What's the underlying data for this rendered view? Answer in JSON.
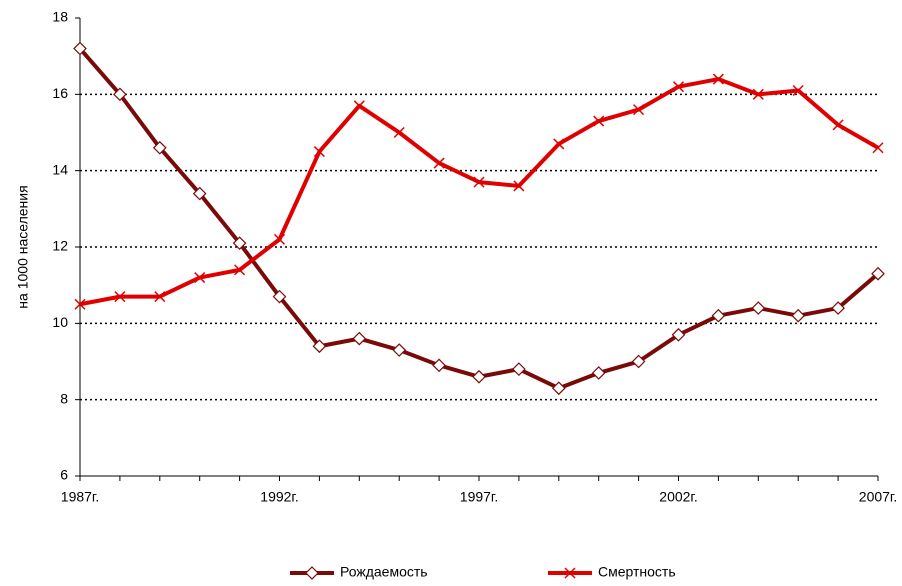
{
  "chart_data": {
    "type": "line",
    "y_label": "на 1000 населения",
    "categories": [
      "1987г.",
      null,
      null,
      null,
      null,
      "1992г.",
      null,
      null,
      null,
      null,
      "1997г.",
      null,
      null,
      null,
      null,
      "2002г.",
      null,
      null,
      null,
      null,
      "2007г."
    ],
    "series": [
      {
        "name": "Рождаемость",
        "color": "#7a0a0a",
        "marker": "diamond",
        "values": [
          17.2,
          16.0,
          14.6,
          13.4,
          12.1,
          10.7,
          9.4,
          9.6,
          9.3,
          8.9,
          8.6,
          8.8,
          8.3,
          8.7,
          9.0,
          9.7,
          10.2,
          10.4,
          10.2,
          10.4,
          11.3
        ]
      },
      {
        "name": "Смертность",
        "color": "#e00000",
        "marker": "x",
        "values": [
          10.5,
          10.7,
          10.7,
          11.2,
          11.4,
          12.2,
          14.5,
          15.7,
          15.0,
          14.2,
          13.7,
          13.6,
          14.7,
          15.3,
          15.6,
          16.2,
          16.4,
          16.0,
          16.1,
          15.2,
          14.6
        ]
      }
    ],
    "ylim": [
      6,
      18
    ],
    "yticks": [
      6,
      8,
      10,
      12,
      14,
      16,
      18
    ],
    "grid": true,
    "legend": "bottom"
  }
}
